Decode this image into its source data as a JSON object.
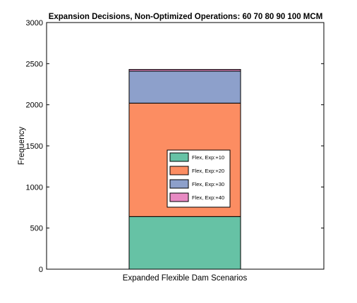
{
  "chart_data": {
    "type": "bar",
    "stacked": true,
    "title": "Expansion Decisions, Non-Optimized Operations: 60   70   80   90  100 MCM",
    "xlabel": "Expanded Flexible Dam Scenarios",
    "ylabel": "Frequency",
    "ylim": [
      0,
      3000
    ],
    "yticks": [
      0,
      500,
      1000,
      1500,
      2000,
      2500,
      3000
    ],
    "categories": [
      "Expanded Flexible Dam Scenarios"
    ],
    "series": [
      {
        "name": "Flex, Exp:+10",
        "values": [
          640
        ],
        "color": "#66c2a5"
      },
      {
        "name": "Flex, Exp:+20",
        "values": [
          1380
        ],
        "color": "#fc8d62"
      },
      {
        "name": "Flex, Exp:+30",
        "values": [
          390
        ],
        "color": "#8da0cb"
      },
      {
        "name": "Flex, Exp:+40",
        "values": [
          20
        ],
        "color": "#e78ac3"
      }
    ],
    "legend_position": "inside-right",
    "grid": false
  }
}
